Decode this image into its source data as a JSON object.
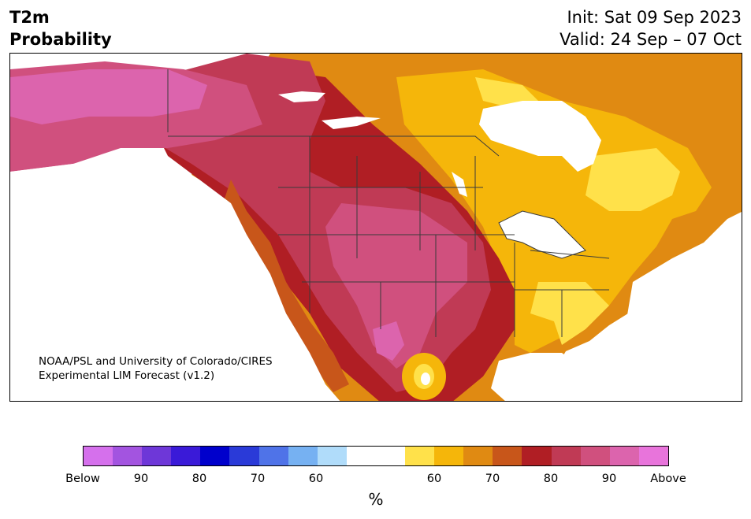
{
  "header": {
    "title_line1": "T2m",
    "title_line2": "Probability",
    "init_text": "Init: Sat 09 Sep 2023",
    "valid_text": "Valid: 24 Sep – 07 Oct"
  },
  "credit": {
    "line1": "NOAA/PSL and University of Colorado/CIRES",
    "line2": "Experimental LIM Forecast (v1.2)"
  },
  "colorbar": {
    "unit": "%",
    "colors": [
      "#d570ec",
      "#a354e0",
      "#6e37d8",
      "#3a1ad8",
      "#0000cc",
      "#2a3ad8",
      "#4f73e8",
      "#76b1f2",
      "#b0dcfa",
      "#ffffff",
      "#ffffff",
      "#ffe14a",
      "#f5b60a",
      "#e08a12",
      "#c8561a",
      "#b01e24",
      "#c03a55",
      "#d0507e",
      "#dc64ad",
      "#e874db"
    ],
    "tick_labels": [
      "Below",
      "90",
      "80",
      "70",
      "60",
      "60",
      "70",
      "80",
      "90",
      "Above"
    ]
  },
  "map_colors": {
    "pink_light": "#dc64ad",
    "pink": "#d0507e",
    "rose": "#c03a55",
    "dark_red": "#b01e24",
    "red_orange": "#c8561a",
    "orange": "#e08a12",
    "gold": "#f5b60a",
    "yellow": "#ffe14a",
    "boundary": "#3a3a3a"
  }
}
